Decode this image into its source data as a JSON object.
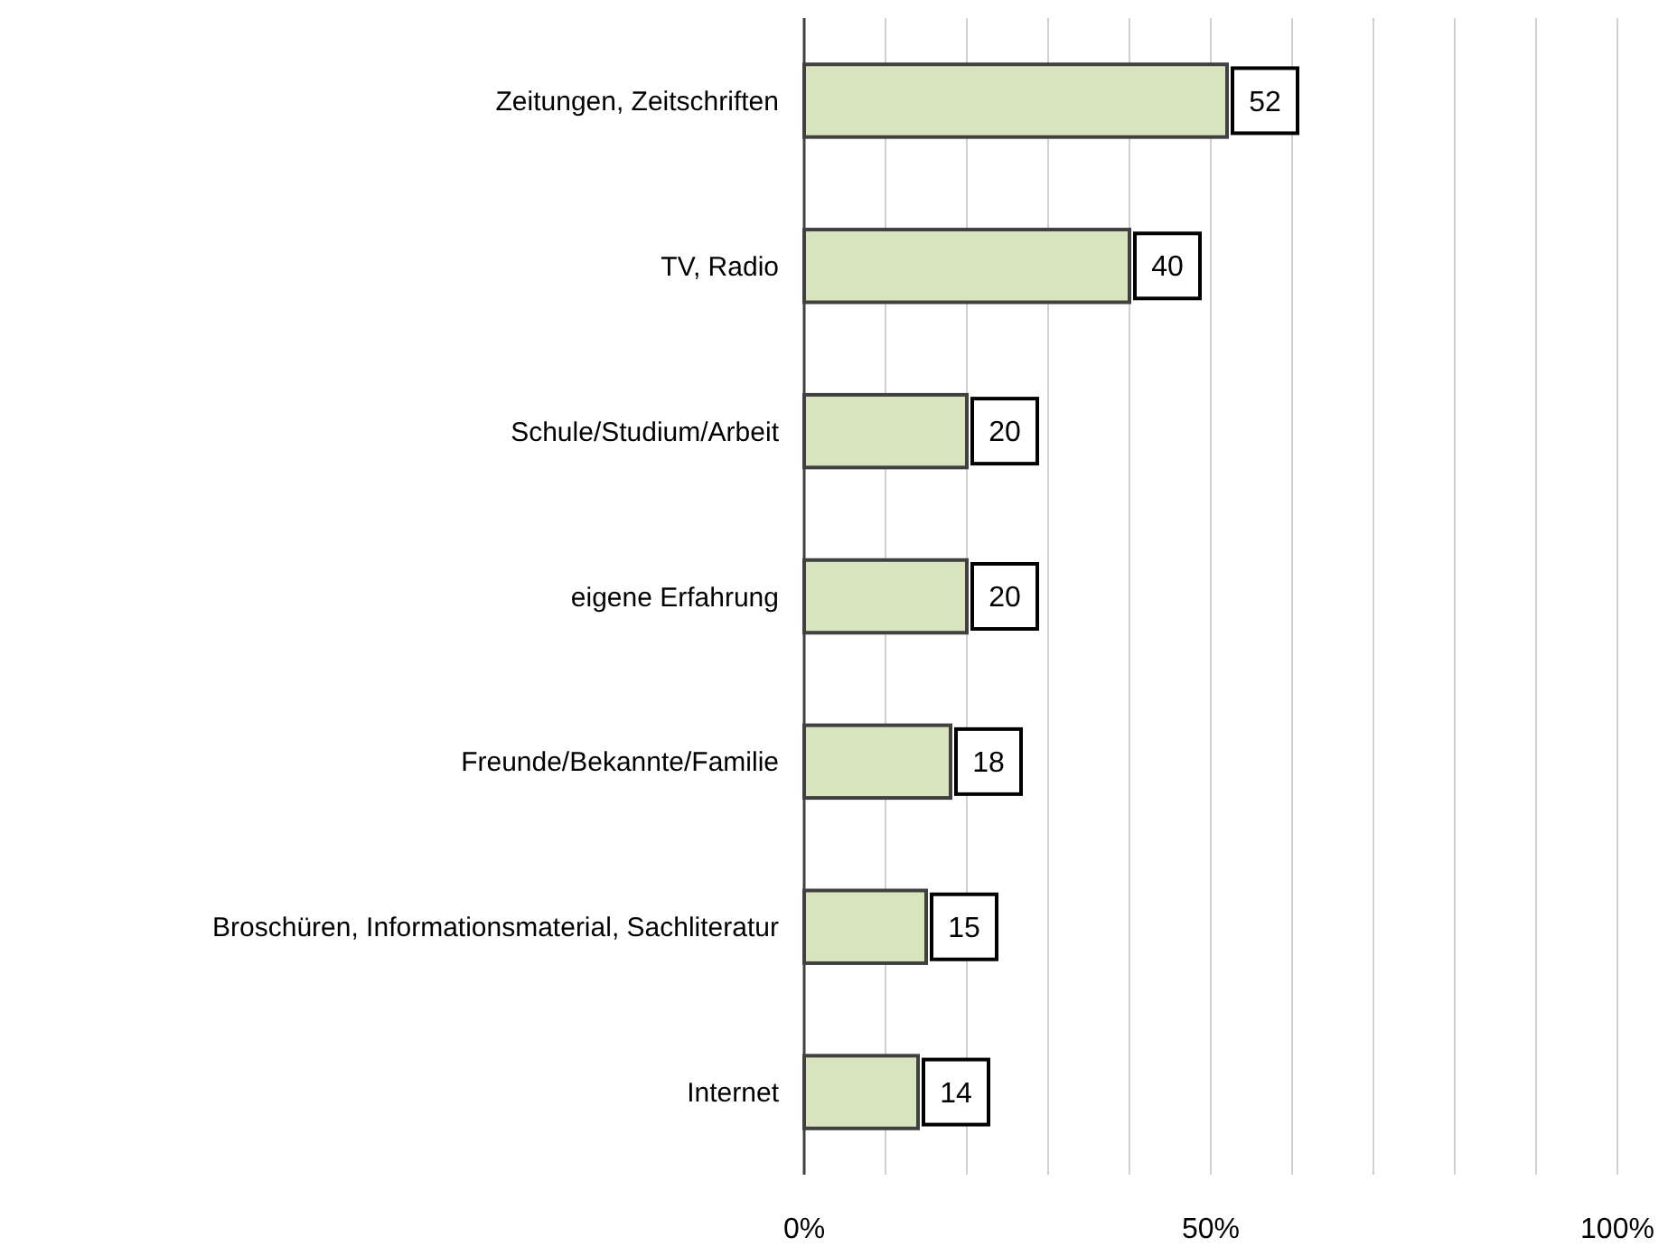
{
  "chart_data": {
    "type": "bar",
    "orientation": "horizontal",
    "categories": [
      "Zeitungen, Zeitschriften",
      "TV, Radio",
      "Schule/Studium/Arbeit",
      "eigene Erfahrung",
      "Freunde/Bekannte/Familie",
      "Broschüren, Informationsmaterial, Sachliteratur",
      "Internet"
    ],
    "values": [
      52,
      40,
      20,
      20,
      18,
      15,
      14
    ],
    "color": "#d7e4bd",
    "xlim": [
      0,
      100
    ],
    "xticks": [
      {
        "value": 0,
        "label": "0%"
      },
      {
        "value": 10,
        "label": null
      },
      {
        "value": 20,
        "label": null
      },
      {
        "value": 30,
        "label": null
      },
      {
        "value": 40,
        "label": null
      },
      {
        "value": 50,
        "label": "50%"
      },
      {
        "value": 60,
        "label": null
      },
      {
        "value": 70,
        "label": null
      },
      {
        "value": 80,
        "label": null
      },
      {
        "value": 90,
        "label": null
      },
      {
        "value": 100,
        "label": "100%"
      }
    ],
    "grid": "x",
    "data_labels": true
  }
}
